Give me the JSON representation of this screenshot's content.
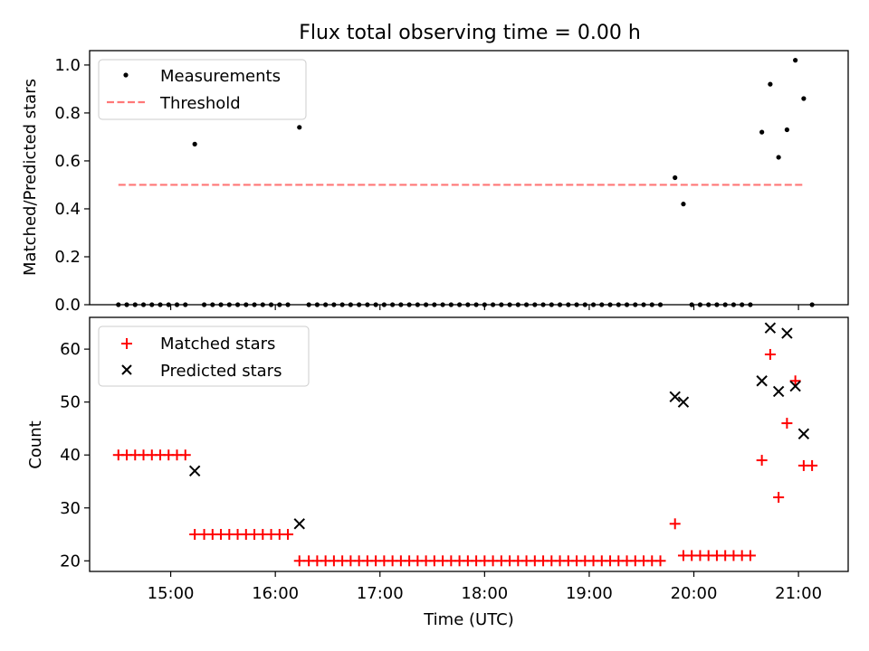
{
  "title": "Flux total observing time = 0.00 h",
  "chart_data": [
    {
      "type": "scatter",
      "panel": "top",
      "ylabel": "Matched/Predicted stars",
      "ylim": [
        0,
        1.06
      ],
      "yticks": [
        "0.0",
        "0.2",
        "0.4",
        "0.6",
        "0.8",
        "1.0"
      ],
      "xlim": [
        14.225,
        21.475
      ],
      "grid": false,
      "legend_placement": "top-left",
      "series": [
        {
          "name": "Measurements",
          "marker": "dot",
          "color": "#000000",
          "points": [
            {
              "x": 14.5,
              "y": 0
            },
            {
              "x": 14.58,
              "y": 0
            },
            {
              "x": 14.66,
              "y": 0
            },
            {
              "x": 14.74,
              "y": 0
            },
            {
              "x": 14.82,
              "y": 0
            },
            {
              "x": 14.9,
              "y": 0
            },
            {
              "x": 14.98,
              "y": 0
            },
            {
              "x": 15.06,
              "y": 0
            },
            {
              "x": 15.14,
              "y": 0
            },
            {
              "x": 15.23,
              "y": 0.67
            },
            {
              "x": 15.32,
              "y": 0
            },
            {
              "x": 15.4,
              "y": 0
            },
            {
              "x": 15.48,
              "y": 0
            },
            {
              "x": 15.56,
              "y": 0
            },
            {
              "x": 15.64,
              "y": 0
            },
            {
              "x": 15.72,
              "y": 0
            },
            {
              "x": 15.8,
              "y": 0
            },
            {
              "x": 15.88,
              "y": 0
            },
            {
              "x": 15.96,
              "y": 0
            },
            {
              "x": 16.04,
              "y": 0
            },
            {
              "x": 16.12,
              "y": 0
            },
            {
              "x": 16.23,
              "y": 0.74
            },
            {
              "x": 16.32,
              "y": 0
            },
            {
              "x": 16.4,
              "y": 0
            },
            {
              "x": 16.48,
              "y": 0
            },
            {
              "x": 16.56,
              "y": 0
            },
            {
              "x": 16.64,
              "y": 0
            },
            {
              "x": 16.72,
              "y": 0
            },
            {
              "x": 16.8,
              "y": 0
            },
            {
              "x": 16.88,
              "y": 0
            },
            {
              "x": 16.96,
              "y": 0
            },
            {
              "x": 17.04,
              "y": 0
            },
            {
              "x": 17.12,
              "y": 0
            },
            {
              "x": 17.2,
              "y": 0
            },
            {
              "x": 17.28,
              "y": 0
            },
            {
              "x": 17.36,
              "y": 0
            },
            {
              "x": 17.44,
              "y": 0
            },
            {
              "x": 17.52,
              "y": 0
            },
            {
              "x": 17.6,
              "y": 0
            },
            {
              "x": 17.68,
              "y": 0
            },
            {
              "x": 17.76,
              "y": 0
            },
            {
              "x": 17.84,
              "y": 0
            },
            {
              "x": 17.92,
              "y": 0
            },
            {
              "x": 18.0,
              "y": 0
            },
            {
              "x": 18.08,
              "y": 0
            },
            {
              "x": 18.16,
              "y": 0
            },
            {
              "x": 18.24,
              "y": 0
            },
            {
              "x": 18.32,
              "y": 0
            },
            {
              "x": 18.4,
              "y": 0
            },
            {
              "x": 18.48,
              "y": 0
            },
            {
              "x": 18.56,
              "y": 0
            },
            {
              "x": 18.64,
              "y": 0
            },
            {
              "x": 18.72,
              "y": 0
            },
            {
              "x": 18.8,
              "y": 0
            },
            {
              "x": 18.88,
              "y": 0
            },
            {
              "x": 18.96,
              "y": 0
            },
            {
              "x": 19.04,
              "y": 0
            },
            {
              "x": 19.12,
              "y": 0
            },
            {
              "x": 19.2,
              "y": 0
            },
            {
              "x": 19.28,
              "y": 0
            },
            {
              "x": 19.36,
              "y": 0
            },
            {
              "x": 19.44,
              "y": 0
            },
            {
              "x": 19.52,
              "y": 0
            },
            {
              "x": 19.6,
              "y": 0
            },
            {
              "x": 19.68,
              "y": 0
            },
            {
              "x": 19.82,
              "y": 0.53
            },
            {
              "x": 19.9,
              "y": 0.42
            },
            {
              "x": 19.98,
              "y": 0
            },
            {
              "x": 20.06,
              "y": 0
            },
            {
              "x": 20.14,
              "y": 0
            },
            {
              "x": 20.22,
              "y": 0
            },
            {
              "x": 20.3,
              "y": 0
            },
            {
              "x": 20.38,
              "y": 0
            },
            {
              "x": 20.46,
              "y": 0
            },
            {
              "x": 20.54,
              "y": 0
            },
            {
              "x": 20.65,
              "y": 0.72
            },
            {
              "x": 20.73,
              "y": 0.92
            },
            {
              "x": 20.81,
              "y": 0.615
            },
            {
              "x": 20.89,
              "y": 0.73
            },
            {
              "x": 20.97,
              "y": 1.02
            },
            {
              "x": 21.05,
              "y": 0.86
            },
            {
              "x": 21.13,
              "y": 0
            }
          ]
        },
        {
          "name": "Threshold",
          "style": "dashed",
          "color": "#ff7777",
          "points": [
            {
              "x": 14.5,
              "y": 0.5
            },
            {
              "x": 21.05,
              "y": 0.5
            }
          ]
        }
      ]
    },
    {
      "type": "scatter",
      "panel": "bottom",
      "ylabel": "Count",
      "xlabel": "Time (UTC)",
      "ylim": [
        18,
        66
      ],
      "yticks": [
        "20",
        "30",
        "40",
        "50",
        "60"
      ],
      "xlim": [
        14.225,
        21.475
      ],
      "xticks": [
        {
          "value": 15,
          "label": "15:00"
        },
        {
          "value": 16,
          "label": "16:00"
        },
        {
          "value": 17,
          "label": "17:00"
        },
        {
          "value": 18,
          "label": "18:00"
        },
        {
          "value": 19,
          "label": "19:00"
        },
        {
          "value": 20,
          "label": "20:00"
        },
        {
          "value": 21,
          "label": "21:00"
        }
      ],
      "grid": false,
      "legend_placement": "top-left",
      "series": [
        {
          "name": "Matched stars",
          "marker": "plus",
          "color": "#ff0000",
          "points": [
            {
              "x": 14.5,
              "y": 40
            },
            {
              "x": 14.58,
              "y": 40
            },
            {
              "x": 14.66,
              "y": 40
            },
            {
              "x": 14.74,
              "y": 40
            },
            {
              "x": 14.82,
              "y": 40
            },
            {
              "x": 14.9,
              "y": 40
            },
            {
              "x": 14.98,
              "y": 40
            },
            {
              "x": 15.06,
              "y": 40
            },
            {
              "x": 15.14,
              "y": 40
            },
            {
              "x": 15.23,
              "y": 25
            },
            {
              "x": 15.32,
              "y": 25
            },
            {
              "x": 15.4,
              "y": 25
            },
            {
              "x": 15.48,
              "y": 25
            },
            {
              "x": 15.56,
              "y": 25
            },
            {
              "x": 15.64,
              "y": 25
            },
            {
              "x": 15.72,
              "y": 25
            },
            {
              "x": 15.8,
              "y": 25
            },
            {
              "x": 15.88,
              "y": 25
            },
            {
              "x": 15.96,
              "y": 25
            },
            {
              "x": 16.04,
              "y": 25
            },
            {
              "x": 16.12,
              "y": 25
            },
            {
              "x": 16.23,
              "y": 20
            },
            {
              "x": 16.32,
              "y": 20
            },
            {
              "x": 16.4,
              "y": 20
            },
            {
              "x": 16.48,
              "y": 20
            },
            {
              "x": 16.56,
              "y": 20
            },
            {
              "x": 16.64,
              "y": 20
            },
            {
              "x": 16.72,
              "y": 20
            },
            {
              "x": 16.8,
              "y": 20
            },
            {
              "x": 16.88,
              "y": 20
            },
            {
              "x": 16.96,
              "y": 20
            },
            {
              "x": 17.04,
              "y": 20
            },
            {
              "x": 17.12,
              "y": 20
            },
            {
              "x": 17.2,
              "y": 20
            },
            {
              "x": 17.28,
              "y": 20
            },
            {
              "x": 17.36,
              "y": 20
            },
            {
              "x": 17.44,
              "y": 20
            },
            {
              "x": 17.52,
              "y": 20
            },
            {
              "x": 17.6,
              "y": 20
            },
            {
              "x": 17.68,
              "y": 20
            },
            {
              "x": 17.76,
              "y": 20
            },
            {
              "x": 17.84,
              "y": 20
            },
            {
              "x": 17.92,
              "y": 20
            },
            {
              "x": 18.0,
              "y": 20
            },
            {
              "x": 18.08,
              "y": 20
            },
            {
              "x": 18.16,
              "y": 20
            },
            {
              "x": 18.24,
              "y": 20
            },
            {
              "x": 18.32,
              "y": 20
            },
            {
              "x": 18.4,
              "y": 20
            },
            {
              "x": 18.48,
              "y": 20
            },
            {
              "x": 18.56,
              "y": 20
            },
            {
              "x": 18.64,
              "y": 20
            },
            {
              "x": 18.72,
              "y": 20
            },
            {
              "x": 18.8,
              "y": 20
            },
            {
              "x": 18.88,
              "y": 20
            },
            {
              "x": 18.96,
              "y": 20
            },
            {
              "x": 19.04,
              "y": 20
            },
            {
              "x": 19.12,
              "y": 20
            },
            {
              "x": 19.2,
              "y": 20
            },
            {
              "x": 19.28,
              "y": 20
            },
            {
              "x": 19.36,
              "y": 20
            },
            {
              "x": 19.44,
              "y": 20
            },
            {
              "x": 19.52,
              "y": 20
            },
            {
              "x": 19.6,
              "y": 20
            },
            {
              "x": 19.68,
              "y": 20
            },
            {
              "x": 19.82,
              "y": 27
            },
            {
              "x": 19.9,
              "y": 21
            },
            {
              "x": 19.98,
              "y": 21
            },
            {
              "x": 20.06,
              "y": 21
            },
            {
              "x": 20.14,
              "y": 21
            },
            {
              "x": 20.22,
              "y": 21
            },
            {
              "x": 20.3,
              "y": 21
            },
            {
              "x": 20.38,
              "y": 21
            },
            {
              "x": 20.46,
              "y": 21
            },
            {
              "x": 20.54,
              "y": 21
            },
            {
              "x": 20.65,
              "y": 39
            },
            {
              "x": 20.73,
              "y": 59
            },
            {
              "x": 20.81,
              "y": 32
            },
            {
              "x": 20.89,
              "y": 46
            },
            {
              "x": 20.97,
              "y": 54
            },
            {
              "x": 21.05,
              "y": 38
            },
            {
              "x": 21.13,
              "y": 38
            }
          ]
        },
        {
          "name": "Predicted stars",
          "marker": "x",
          "color": "#000000",
          "points": [
            {
              "x": 15.23,
              "y": 37
            },
            {
              "x": 16.23,
              "y": 27
            },
            {
              "x": 19.82,
              "y": 51
            },
            {
              "x": 19.9,
              "y": 50
            },
            {
              "x": 20.65,
              "y": 54
            },
            {
              "x": 20.73,
              "y": 64
            },
            {
              "x": 20.81,
              "y": 52
            },
            {
              "x": 20.89,
              "y": 63
            },
            {
              "x": 20.97,
              "y": 53
            },
            {
              "x": 21.05,
              "y": 44
            }
          ]
        }
      ]
    }
  ]
}
